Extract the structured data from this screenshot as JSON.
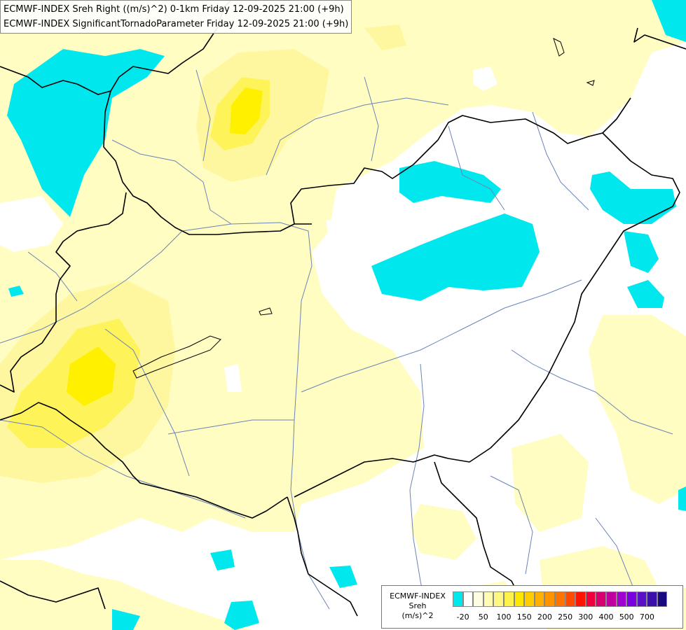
{
  "map": {
    "title_line1": "ECMWF-INDEX Sreh Right ((m/s)^2) 0-1km Friday 12-09-2025 21:00 (+9h)",
    "title_line2": "ECMWF-INDEX SignificantTornadoParameter Friday 12-09-2025 21:00 (+9h)",
    "colors": {
      "cyan": "#00e8ee",
      "pale_yellow": "#fffdc2",
      "light_yellow": "#fff7a0",
      "yellow": "#fff35a",
      "bright_yellow": "#fff000",
      "border": "#000000",
      "river": "#6b84b8"
    }
  },
  "legend": {
    "title": "ECMWF-INDEX",
    "variable": "Sreh",
    "unit": "(m/s)^2",
    "tick_labels": [
      "-20",
      "50",
      "100",
      "150",
      "200",
      "250",
      "300",
      "400",
      "500",
      "700"
    ],
    "colors": [
      "#00e8ee",
      "#ffffff",
      "#fffde0",
      "#fffbb0",
      "#fff780",
      "#fff24a",
      "#ffe600",
      "#ffcc00",
      "#ffb000",
      "#ff9400",
      "#ff7400",
      "#ff4a00",
      "#ff1400",
      "#f0003c",
      "#d8006e",
      "#c000a0",
      "#a000d0",
      "#7a00e0",
      "#5a10c8",
      "#3a10a8",
      "#1a0a80"
    ]
  }
}
